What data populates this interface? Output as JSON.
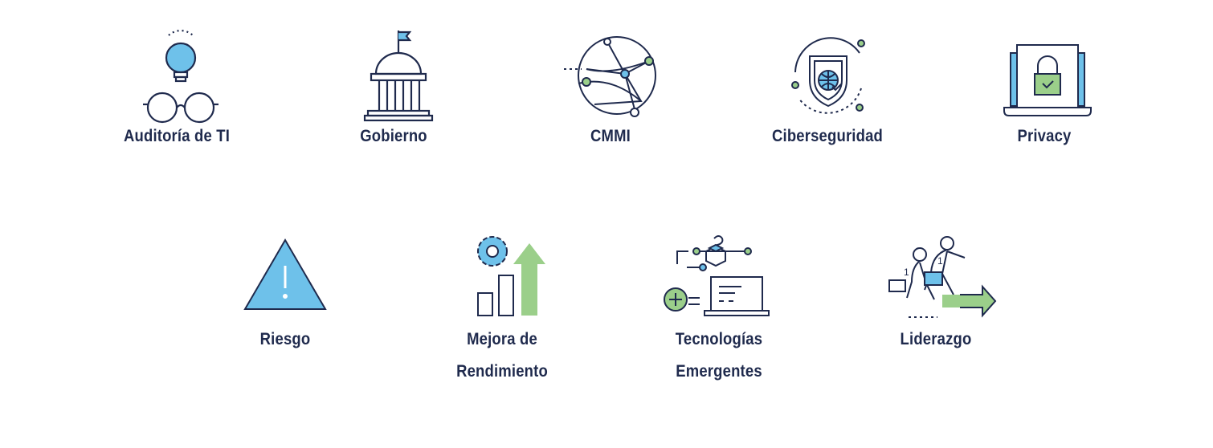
{
  "palette": {
    "navy": "#1f2a4d",
    "blue": "#6ec1ea",
    "green": "#9bcf8a"
  },
  "services": [
    {
      "label": "Auditoría de TI",
      "icon": "lightbulb-glasses-icon"
    },
    {
      "label": "Gobierno",
      "icon": "capitol-building-icon"
    },
    {
      "label": "CMMI",
      "icon": "network-globe-icon"
    },
    {
      "label": "Ciberseguridad",
      "icon": "shield-globe-icon"
    },
    {
      "label": "Privacy",
      "icon": "laptop-lock-icon"
    },
    {
      "label": "Riesgo",
      "icon": "warning-triangle-icon"
    },
    {
      "label": "Mejora de\nRendimiento",
      "icon": "gear-growth-chart-icon"
    },
    {
      "label": "Tecnologías\nEmergentes",
      "icon": "emerging-tech-laptop-icon"
    },
    {
      "label": "Liderazgo",
      "icon": "leaders-arrow-icon"
    }
  ]
}
